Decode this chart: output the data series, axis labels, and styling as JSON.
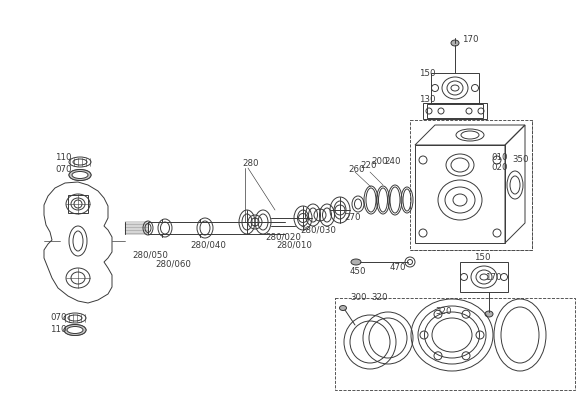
{
  "bg_color": "#ffffff",
  "line_color": "#3a3a3a",
  "text_color": "#3a3a3a",
  "fig_width": 5.87,
  "fig_height": 4.0,
  "dpi": 100
}
